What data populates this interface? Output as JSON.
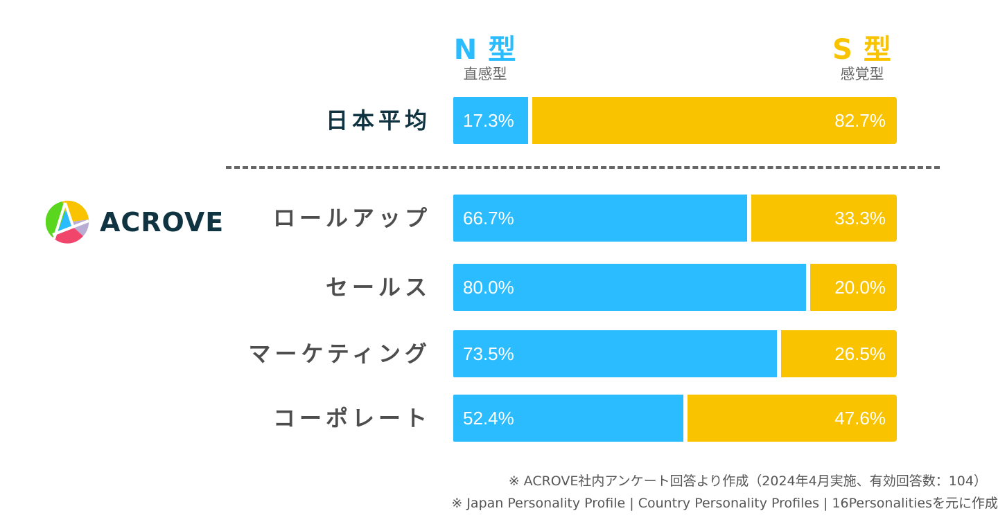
{
  "colors": {
    "n_type": "#2bbbff",
    "s_type": "#f9c300",
    "label_primary": "#0f3340",
    "label_secondary": "#4d4d4d",
    "divider": "#666666"
  },
  "legend": {
    "n": {
      "title": "N 型",
      "subtitle": "直感型"
    },
    "s": {
      "title": "S 型",
      "subtitle": "感覚型"
    }
  },
  "logo": {
    "text": "ACROVE",
    "icon": "acrove-logo-mark-icon"
  },
  "chart_data": {
    "type": "bar",
    "orientation": "horizontal",
    "stacked": true,
    "percent": true,
    "title": "",
    "xlabel": "",
    "ylabel": "",
    "xlim": [
      0,
      100
    ],
    "grid": false,
    "legend_position": "top",
    "categories": [
      "日本平均",
      "ロールアップ",
      "セールス",
      "マーケティング",
      "コーポレート"
    ],
    "series": [
      {
        "name": "N型（直感型）",
        "values": [
          17.3,
          66.7,
          80.0,
          73.5,
          52.4
        ]
      },
      {
        "name": "S型（感覚型）",
        "values": [
          82.7,
          33.3,
          20.0,
          26.5,
          47.6
        ]
      }
    ],
    "value_labels": {
      "n": [
        "17.3%",
        "66.7%",
        "80.0%",
        "73.5%",
        "52.4%"
      ],
      "s": [
        "82.7%",
        "33.3%",
        "20.0%",
        "26.5%",
        "47.6%"
      ]
    },
    "groups": [
      {
        "name": "日本平均",
        "rows": [
          0
        ]
      },
      {
        "name": "ACROVE",
        "rows": [
          1,
          2,
          3,
          4
        ]
      }
    ]
  },
  "notes": [
    "※ ACROVE社内アンケート回答より作成（2024年4月実施、有効回答数：104）",
    "※ Japan Personality Profile | Country Personality Profiles | 16Personalitiesを元に作成"
  ]
}
